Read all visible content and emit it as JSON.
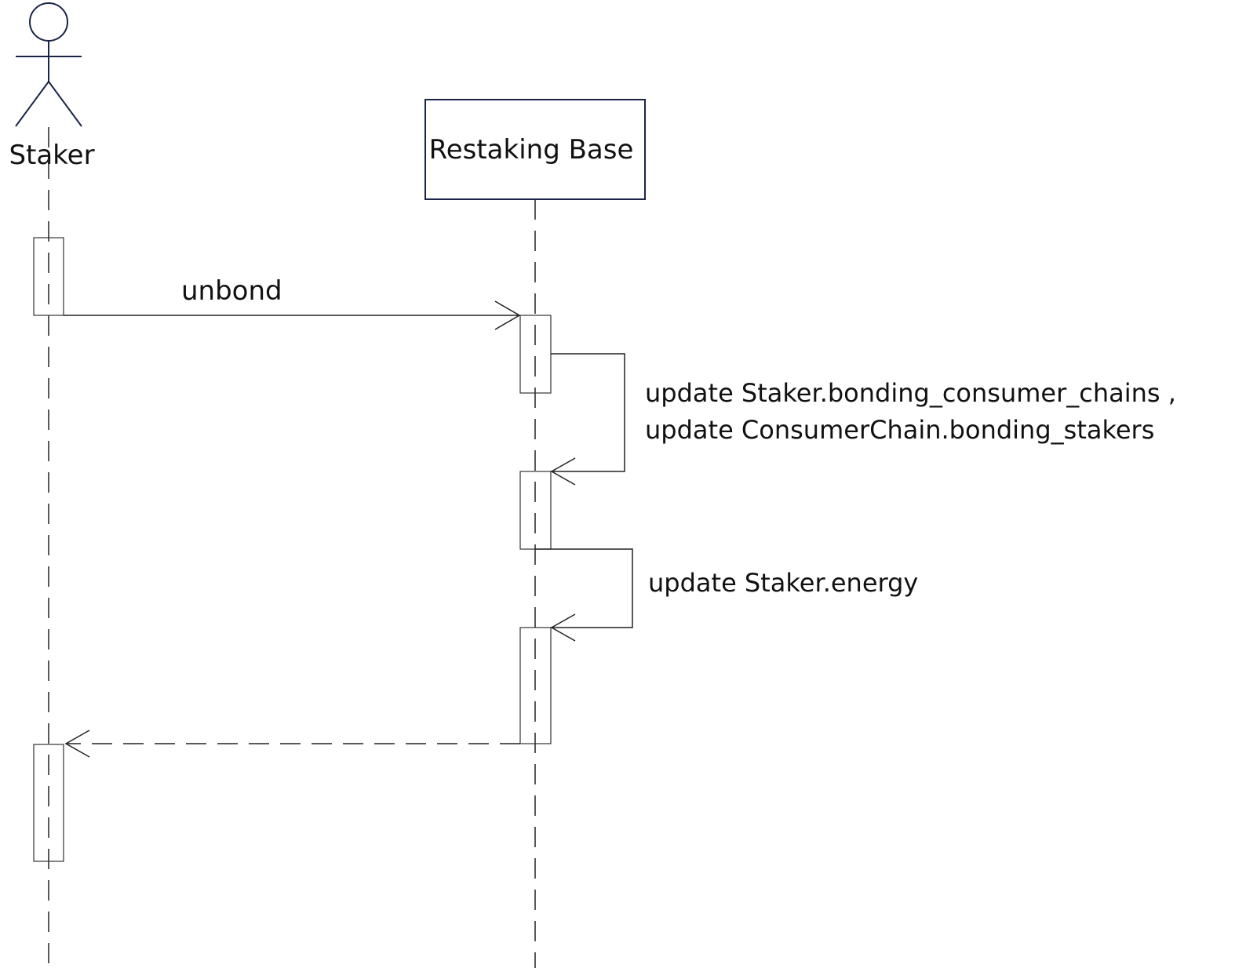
{
  "actor": {
    "name": "Staker"
  },
  "participant": {
    "name": "Restaking Base"
  },
  "messages": {
    "call": {
      "label": "unbond"
    },
    "self_call_1": {
      "line1": "update Staker.bonding_consumer_chains ,",
      "line2": "update ConsumerChain.bonding_stakers"
    },
    "self_call_2": {
      "label": "update Staker.energy"
    }
  },
  "colors": {
    "participant_stroke": "#1a2448",
    "line": "#222222",
    "text": "#111111"
  }
}
